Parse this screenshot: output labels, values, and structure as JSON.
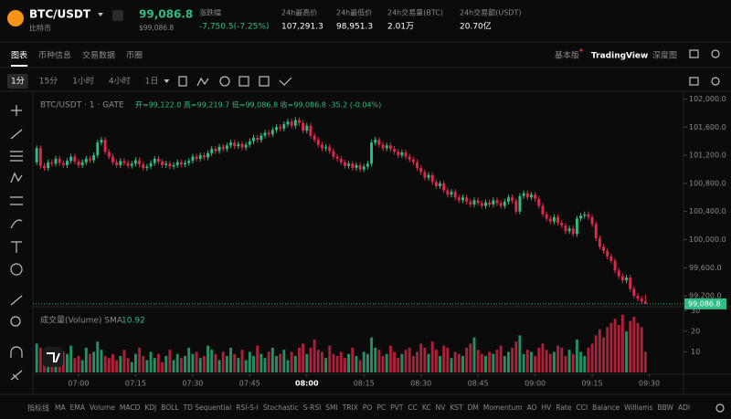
{
  "header": {
    "pair": "BTC/USDT",
    "pair_name": "比特币",
    "price": "99,086.8",
    "price_usd": "$99,086.8",
    "stats": [
      {
        "label": "涨跌幅",
        "value": "-7,750.5(-7.25%)"
      },
      {
        "label": "24h最高价",
        "value": "107,291.3"
      },
      {
        "label": "24h最低价",
        "value": "98,951.3"
      },
      {
        "label": "24h交易量(BTC)",
        "value": "2.01万"
      },
      {
        "label": "24h交易额(USDT)",
        "value": "20.70亿"
      }
    ]
  },
  "tabs": [
    "图表",
    "币种信息",
    "交易数据",
    "币圈"
  ],
  "views": [
    "基本版",
    "TradingView",
    "深度图"
  ],
  "intervals": [
    "1分",
    "15分",
    "1小时",
    "4小时",
    "1日"
  ],
  "indicators": {
    "title": "指标线",
    "items": [
      "MA",
      "EMA",
      "Volume",
      "MACD",
      "KDJ",
      "BOLL",
      "TD Sequential",
      "RSI-S-I",
      "Stochastic",
      "S-RSI",
      "SMI",
      "TRIX",
      "PO",
      "PC",
      "PVT",
      "CC",
      "KC",
      "NV",
      "KST",
      "DM",
      "Momentum",
      "AO",
      "HV",
      "Rate",
      "CCI",
      "Balance",
      "Williams",
      "BBW",
      "ADI"
    ]
  },
  "chart_data": {
    "type": "candlestick",
    "symbol_label": "BTC/USDT · 1 · GATE",
    "ohlc_legend": "开=99,122.0  高=99,219.7  低=99,086.8  收=99,086.8  -35.2 (-0.04%)",
    "up_color": "#2ebd85",
    "down_color": "#e0294a",
    "xlim": [
      -1,
      170
    ],
    "xticks": [
      {
        "value": 11,
        "label": "07:00"
      },
      {
        "value": 26,
        "label": "07:15"
      },
      {
        "value": 41,
        "label": "07:30"
      },
      {
        "value": 56,
        "label": "07:45"
      },
      {
        "value": 71,
        "label": "08:00"
      },
      {
        "value": 86,
        "label": "08:15"
      },
      {
        "value": 101,
        "label": "08:30"
      },
      {
        "value": 116,
        "label": "08:45"
      },
      {
        "value": 131,
        "label": "09:00"
      },
      {
        "value": 146,
        "label": "09:15"
      },
      {
        "value": 161,
        "label": "09:30"
      }
    ],
    "ylim": [
      99046,
      102110
    ],
    "yticks": [
      {
        "value": 99200,
        "label": "99,200.0"
      },
      {
        "value": 99600,
        "label": "99,600.0"
      },
      {
        "value": 100000,
        "label": "100,000.0"
      },
      {
        "value": 100400,
        "label": "100,400.0"
      },
      {
        "value": 100800,
        "label": "100,800.0"
      },
      {
        "value": 101200,
        "label": "101,200.0"
      },
      {
        "value": 101600,
        "label": "101,600.0"
      },
      {
        "value": 102000,
        "label": "102,000.0"
      }
    ],
    "last_price": {
      "value": 99086.8,
      "label": "99,086.8"
    },
    "candles": [
      [
        101100,
        101340,
        101060,
        101300
      ],
      [
        101300,
        101340,
        101010,
        101050
      ],
      [
        101050,
        101090,
        100980,
        101020
      ],
      [
        101020,
        101140,
        100980,
        101100
      ],
      [
        101100,
        101140,
        101040,
        101080
      ],
      [
        101080,
        101190,
        101040,
        101150
      ],
      [
        101150,
        101190,
        101050,
        101090
      ],
      [
        101090,
        101130,
        101020,
        101060
      ],
      [
        101060,
        101160,
        101020,
        101120
      ],
      [
        101120,
        101220,
        101080,
        101180
      ],
      [
        101180,
        101220,
        101070,
        101110
      ],
      [
        101110,
        101150,
        101020,
        101060
      ],
      [
        101060,
        101140,
        101020,
        101100
      ],
      [
        101100,
        101190,
        101060,
        101150
      ],
      [
        101150,
        101190,
        101090,
        101130
      ],
      [
        101130,
        101240,
        101090,
        101200
      ],
      [
        101200,
        101420,
        101160,
        101380
      ],
      [
        101380,
        101460,
        101340,
        101420
      ],
      [
        101420,
        101460,
        101210,
        101250
      ],
      [
        101250,
        101290,
        101140,
        101180
      ],
      [
        101180,
        101220,
        101060,
        101100
      ],
      [
        101100,
        101140,
        101020,
        101060
      ],
      [
        101060,
        101160,
        101020,
        101120
      ],
      [
        101120,
        101160,
        101050,
        101090
      ],
      [
        101090,
        101130,
        101010,
        101050
      ],
      [
        101050,
        101120,
        101010,
        101080
      ],
      [
        101080,
        101170,
        101040,
        101130
      ],
      [
        101130,
        101170,
        101030,
        101070
      ],
      [
        101070,
        101110,
        100980,
        101020
      ],
      [
        101020,
        101080,
        100980,
        101040
      ],
      [
        101040,
        101130,
        101000,
        101090
      ],
      [
        101090,
        101190,
        101050,
        101150
      ],
      [
        101150,
        101190,
        101070,
        101110
      ],
      [
        101110,
        101150,
        101020,
        101060
      ],
      [
        101060,
        101120,
        101020,
        101080
      ],
      [
        101080,
        101120,
        101000,
        101040
      ],
      [
        101040,
        101100,
        101000,
        101060
      ],
      [
        101060,
        101140,
        101020,
        101100
      ],
      [
        101100,
        101140,
        101030,
        101070
      ],
      [
        101070,
        101130,
        101030,
        101090
      ],
      [
        101090,
        101160,
        101050,
        101120
      ],
      [
        101120,
        101220,
        101080,
        101180
      ],
      [
        101180,
        101220,
        101110,
        101150
      ],
      [
        101150,
        101240,
        101110,
        101200
      ],
      [
        101200,
        101240,
        101130,
        101170
      ],
      [
        101170,
        101270,
        101130,
        101230
      ],
      [
        101230,
        101330,
        101190,
        101290
      ],
      [
        101290,
        101330,
        101220,
        101260
      ],
      [
        101260,
        101360,
        101220,
        101320
      ],
      [
        101320,
        101360,
        101250,
        101290
      ],
      [
        101290,
        101380,
        101250,
        101340
      ],
      [
        101340,
        101420,
        101300,
        101380
      ],
      [
        101380,
        101420,
        101290,
        101330
      ],
      [
        101330,
        101400,
        101290,
        101360
      ],
      [
        101360,
        101400,
        101270,
        101310
      ],
      [
        101310,
        101390,
        101270,
        101350
      ],
      [
        101350,
        101440,
        101310,
        101400
      ],
      [
        101400,
        101490,
        101360,
        101450
      ],
      [
        101450,
        101490,
        101380,
        101420
      ],
      [
        101420,
        101520,
        101380,
        101480
      ],
      [
        101480,
        101560,
        101440,
        101520
      ],
      [
        101520,
        101560,
        101460,
        101500
      ],
      [
        101500,
        101600,
        101460,
        101560
      ],
      [
        101560,
        101640,
        101520,
        101600
      ],
      [
        101600,
        101640,
        101540,
        101580
      ],
      [
        101580,
        101680,
        101540,
        101640
      ],
      [
        101640,
        101720,
        101600,
        101680
      ],
      [
        101680,
        101720,
        101580,
        101620
      ],
      [
        101620,
        101740,
        101580,
        101700
      ],
      [
        101700,
        101740,
        101620,
        101660
      ],
      [
        101660,
        101700,
        101510,
        101550
      ],
      [
        101550,
        101660,
        101510,
        101620
      ],
      [
        101620,
        101660,
        101440,
        101480
      ],
      [
        101480,
        101520,
        101380,
        101420
      ],
      [
        101420,
        101460,
        101310,
        101350
      ],
      [
        101350,
        101390,
        101260,
        101300
      ],
      [
        101300,
        101360,
        101260,
        101320
      ],
      [
        101320,
        101360,
        101220,
        101260
      ],
      [
        101260,
        101300,
        101140,
        101180
      ],
      [
        101180,
        101220,
        101110,
        101150
      ],
      [
        101150,
        101190,
        101060,
        101100
      ],
      [
        101100,
        101140,
        101010,
        101050
      ],
      [
        101050,
        101120,
        101010,
        101080
      ],
      [
        101080,
        101120,
        100980,
        101020
      ],
      [
        101020,
        101100,
        100980,
        101060
      ],
      [
        101060,
        101100,
        100960,
        101000
      ],
      [
        101000,
        101080,
        100960,
        101040
      ],
      [
        101040,
        101120,
        101000,
        101080
      ],
      [
        101080,
        101420,
        101040,
        101380
      ],
      [
        101380,
        101460,
        101340,
        101420
      ],
      [
        101420,
        101460,
        101310,
        101350
      ],
      [
        101350,
        101390,
        101260,
        101300
      ],
      [
        101300,
        101380,
        101260,
        101340
      ],
      [
        101340,
        101380,
        101250,
        101290
      ],
      [
        101290,
        101330,
        101210,
        101250
      ],
      [
        101250,
        101290,
        101160,
        101200
      ],
      [
        101200,
        101280,
        101160,
        101240
      ],
      [
        101240,
        101280,
        101140,
        101180
      ],
      [
        101180,
        101220,
        101100,
        101140
      ],
      [
        101140,
        101180,
        101060,
        101100
      ],
      [
        101100,
        101140,
        100980,
        101020
      ],
      [
        101020,
        101060,
        100920,
        100960
      ],
      [
        100960,
        101000,
        100840,
        100880
      ],
      [
        100880,
        100960,
        100840,
        100920
      ],
      [
        100920,
        100960,
        100780,
        100820
      ],
      [
        100820,
        100860,
        100720,
        100760
      ],
      [
        100760,
        100840,
        100720,
        100800
      ],
      [
        100800,
        100840,
        100660,
        100700
      ],
      [
        100700,
        100740,
        100600,
        100640
      ],
      [
        100640,
        100720,
        100600,
        100680
      ],
      [
        100680,
        100720,
        100560,
        100600
      ],
      [
        100600,
        100640,
        100520,
        100560
      ],
      [
        100560,
        100640,
        100520,
        100600
      ],
      [
        100600,
        100640,
        100500,
        100540
      ],
      [
        100540,
        100580,
        100460,
        100500
      ],
      [
        100500,
        100600,
        100460,
        100560
      ],
      [
        100560,
        100600,
        100480,
        100520
      ],
      [
        100520,
        100560,
        100440,
        100480
      ],
      [
        100480,
        100570,
        100440,
        100530
      ],
      [
        100530,
        100570,
        100460,
        100500
      ],
      [
        100500,
        100600,
        100460,
        100560
      ],
      [
        100560,
        100600,
        100480,
        100520
      ],
      [
        100520,
        100560,
        100440,
        100480
      ],
      [
        100480,
        100580,
        100440,
        100540
      ],
      [
        100540,
        100640,
        100500,
        100600
      ],
      [
        100600,
        100640,
        100510,
        100550
      ],
      [
        100550,
        100590,
        100360,
        100400
      ],
      [
        100400,
        100660,
        100360,
        100620
      ],
      [
        100620,
        100700,
        100580,
        100660
      ],
      [
        100660,
        100700,
        100560,
        100600
      ],
      [
        100600,
        100680,
        100560,
        100640
      ],
      [
        100640,
        100680,
        100540,
        100580
      ],
      [
        100580,
        100620,
        100440,
        100480
      ],
      [
        100480,
        100520,
        100320,
        100360
      ],
      [
        100360,
        100400,
        100260,
        100300
      ],
      [
        100300,
        100340,
        100220,
        100260
      ],
      [
        100260,
        100360,
        100220,
        100320
      ],
      [
        100320,
        100360,
        100200,
        100240
      ],
      [
        100240,
        100280,
        100160,
        100200
      ],
      [
        100200,
        100240,
        100080,
        100120
      ],
      [
        100120,
        100200,
        100080,
        100160
      ],
      [
        100160,
        100200,
        100040,
        100080
      ],
      [
        100080,
        100340,
        100040,
        100300
      ],
      [
        100300,
        100380,
        100260,
        100340
      ],
      [
        100340,
        100400,
        100300,
        100360
      ],
      [
        100360,
        100400,
        100280,
        100320
      ],
      [
        100320,
        100360,
        100180,
        100220
      ],
      [
        100220,
        100260,
        99980,
        100020
      ],
      [
        100020,
        100060,
        99860,
        99900
      ],
      [
        99900,
        99940,
        99800,
        99840
      ],
      [
        99840,
        99880,
        99720,
        99760
      ],
      [
        99760,
        99800,
        99660,
        99700
      ],
      [
        99700,
        99740,
        99520,
        99560
      ],
      [
        99560,
        99600,
        99440,
        99480
      ],
      [
        99480,
        99520,
        99380,
        99420
      ],
      [
        99420,
        99500,
        99380,
        99460
      ],
      [
        99460,
        99500,
        99260,
        99300
      ],
      [
        99300,
        99340,
        99160,
        99200
      ],
      [
        99200,
        99240,
        99120,
        99160
      ],
      [
        99160,
        99200,
        99080,
        99120
      ],
      [
        99122,
        99219.7,
        99086.8,
        99086.8
      ]
    ],
    "volume_label": "成交量(Volume) SMA",
    "volume_sma": "10.92",
    "vlim": [
      0,
      31
    ],
    "vticks": [
      10,
      20,
      30
    ],
    "volumes": [
      14,
      12,
      9,
      7,
      11,
      8,
      6,
      10,
      9,
      13,
      7,
      8,
      6,
      12,
      9,
      10,
      15,
      11,
      8,
      7,
      9,
      6,
      8,
      11,
      7,
      5,
      9,
      12,
      8,
      6,
      10,
      7,
      9,
      5,
      8,
      11,
      6,
      9,
      7,
      8,
      12,
      9,
      10,
      7,
      8,
      13,
      11,
      9,
      6,
      10,
      8,
      12,
      9,
      7,
      11,
      6,
      10,
      8,
      13,
      9,
      7,
      10,
      12,
      8,
      9,
      11,
      6,
      10,
      8,
      12,
      14,
      9,
      12,
      16,
      11,
      10,
      7,
      13,
      9,
      8,
      10,
      7,
      9,
      12,
      8,
      6,
      10,
      9,
      17,
      12,
      11,
      8,
      9,
      13,
      10,
      7,
      9,
      11,
      12,
      8,
      10,
      14,
      12,
      9,
      15,
      11,
      8,
      13,
      12,
      7,
      10,
      9,
      8,
      12,
      14,
      17,
      11,
      9,
      8,
      10,
      9,
      11,
      13,
      8,
      10,
      12,
      15,
      18,
      9,
      11,
      10,
      8,
      12,
      14,
      11,
      9,
      10,
      13,
      12,
      8,
      11,
      9,
      16,
      10,
      8,
      12,
      14,
      18,
      21,
      17,
      22,
      24,
      26,
      23,
      28,
      20,
      25,
      27,
      24,
      22,
      10
    ]
  }
}
